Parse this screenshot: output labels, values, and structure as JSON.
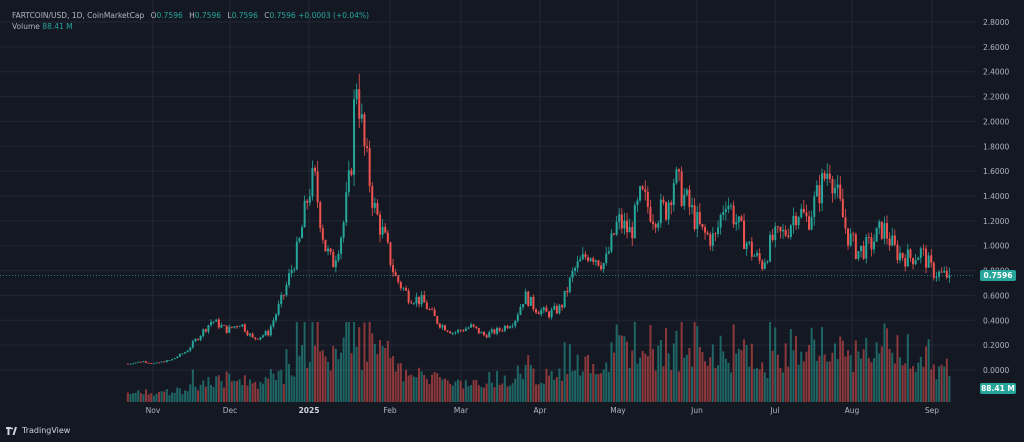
{
  "legend": {
    "symbol": "FARTCOIN/USD, 1D, CoinMarketCap",
    "o_label": "O",
    "o": "0.7596",
    "h_label": "H",
    "h": "0.7596",
    "l_label": "L",
    "l": "0.7596",
    "c_label": "C",
    "c": "0.7596",
    "change": "+0.0003 (+0.04%)",
    "volume_label": "Volume",
    "volume_value": "88.41 M"
  },
  "price_badge": "0.7596",
  "volume_badge": "88.41 M",
  "branding": "TradingView",
  "colors": {
    "up": "#26a69a",
    "down": "#ef5350",
    "background": "#141823",
    "grid": "#222734",
    "text": "#b2b5be"
  },
  "chart_data": {
    "type": "candlestick",
    "y_axis": {
      "min": 0,
      "max": 2.8,
      "ticks": [
        "2.8000",
        "2.6000",
        "2.4000",
        "2.2000",
        "2.0000",
        "1.8000",
        "1.6000",
        "1.4000",
        "1.2000",
        "1.0000",
        "0.8000",
        "0.6000",
        "0.4000",
        "0.2000",
        "0.0000"
      ]
    },
    "x_ticks": [
      "Nov",
      "Dec",
      "2025",
      "Feb",
      "Mar",
      "Apr",
      "May",
      "Jun",
      "Jul",
      "Aug",
      "Sep"
    ],
    "last_price": 0.7596,
    "price_path": [
      {
        "date": "Oct 22",
        "close": 0.05
      },
      {
        "date": "Oct 28",
        "close": 0.07
      },
      {
        "date": "Nov 1",
        "close": 0.05
      },
      {
        "date": "Nov 8",
        "close": 0.08
      },
      {
        "date": "Nov 14",
        "close": 0.15
      },
      {
        "date": "Nov 20",
        "close": 0.3
      },
      {
        "date": "Nov 24",
        "close": 0.4
      },
      {
        "date": "Nov 30",
        "close": 0.32
      },
      {
        "date": "Dec 5",
        "close": 0.38
      },
      {
        "date": "Dec 10",
        "close": 0.25
      },
      {
        "date": "Dec 16",
        "close": 0.3
      },
      {
        "date": "Dec 22",
        "close": 0.6
      },
      {
        "date": "Dec 28",
        "close": 1.0
      },
      {
        "date": "Jan 1",
        "close": 1.45
      },
      {
        "date": "Jan 3",
        "close": 1.55
      },
      {
        "date": "Jan 7",
        "close": 1.0
      },
      {
        "date": "Jan 10",
        "close": 0.85
      },
      {
        "date": "Jan 14",
        "close": 1.15
      },
      {
        "date": "Jan 17",
        "close": 1.6
      },
      {
        "date": "Jan 19",
        "close": 2.4
      },
      {
        "date": "Jan 22",
        "close": 1.8
      },
      {
        "date": "Jan 26",
        "close": 1.3
      },
      {
        "date": "Jan 30",
        "close": 1.05
      },
      {
        "date": "Feb 3",
        "close": 0.75
      },
      {
        "date": "Feb 8",
        "close": 0.6
      },
      {
        "date": "Feb 14",
        "close": 0.55
      },
      {
        "date": "Feb 20",
        "close": 0.38
      },
      {
        "date": "Feb 26",
        "close": 0.3
      },
      {
        "date": "Mar 5",
        "close": 0.35
      },
      {
        "date": "Mar 10",
        "close": 0.28
      },
      {
        "date": "Mar 16",
        "close": 0.32
      },
      {
        "date": "Mar 22",
        "close": 0.4
      },
      {
        "date": "Mar 26",
        "close": 0.6
      },
      {
        "date": "Mar 30",
        "close": 0.5
      },
      {
        "date": "Apr 4",
        "close": 0.45
      },
      {
        "date": "Apr 9",
        "close": 0.5
      },
      {
        "date": "Apr 14",
        "close": 0.8
      },
      {
        "date": "Apr 20",
        "close": 0.95
      },
      {
        "date": "Apr 26",
        "close": 0.85
      },
      {
        "date": "May 1",
        "close": 1.2
      },
      {
        "date": "May 6",
        "close": 1.1
      },
      {
        "date": "May 10",
        "close": 1.4
      },
      {
        "date": "May 15",
        "close": 1.25
      },
      {
        "date": "May 20",
        "close": 1.3
      },
      {
        "date": "May 23",
        "close": 1.55
      },
      {
        "date": "May 28",
        "close": 1.35
      },
      {
        "date": "Jun 3",
        "close": 1.1
      },
      {
        "date": "Jun 8",
        "close": 1.05
      },
      {
        "date": "Jun 12",
        "close": 1.4
      },
      {
        "date": "Jun 17",
        "close": 1.15
      },
      {
        "date": "Jun 22",
        "close": 0.95
      },
      {
        "date": "Jun 26",
        "close": 0.85
      },
      {
        "date": "Jun 30",
        "close": 1.05
      },
      {
        "date": "Jul 5",
        "close": 1.1
      },
      {
        "date": "Jul 10",
        "close": 1.3
      },
      {
        "date": "Jul 14",
        "close": 1.2
      },
      {
        "date": "Jul 18",
        "close": 1.4
      },
      {
        "date": "Jul 23",
        "close": 1.65
      },
      {
        "date": "Jul 26",
        "close": 1.4
      },
      {
        "date": "Jul 30",
        "close": 1.1
      },
      {
        "date": "Aug 3",
        "close": 0.95
      },
      {
        "date": "Aug 8",
        "close": 1.0
      },
      {
        "date": "Aug 13",
        "close": 1.15
      },
      {
        "date": "Aug 18",
        "close": 0.95
      },
      {
        "date": "Aug 23",
        "close": 0.9
      },
      {
        "date": "Aug 28",
        "close": 0.95
      },
      {
        "date": "Sep 1",
        "close": 0.8
      },
      {
        "date": "Sep 5",
        "close": 0.76
      },
      {
        "date": "Sep 8",
        "close": 0.7596
      }
    ]
  }
}
